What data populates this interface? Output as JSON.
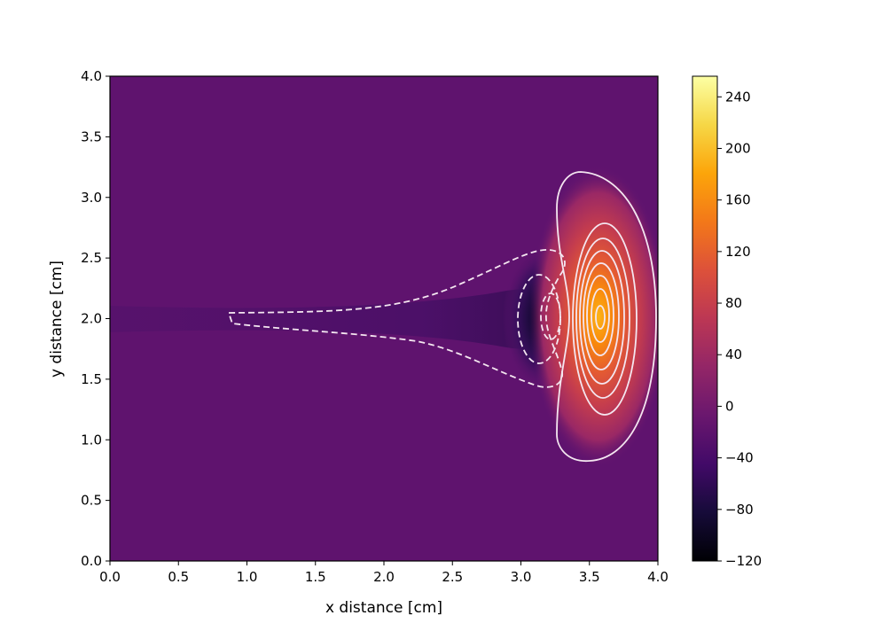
{
  "chart_data": {
    "type": "heatmap",
    "title": "",
    "xlabel": "x distance [cm]",
    "ylabel": "y distance [cm]",
    "xlim": [
      0.0,
      4.0
    ],
    "ylim": [
      0.0,
      4.0
    ],
    "x_ticks": [
      "0.0",
      "0.5",
      "1.0",
      "1.5",
      "2.0",
      "2.5",
      "3.0",
      "3.5",
      "4.0"
    ],
    "y_ticks": [
      "0.0",
      "0.5",
      "1.0",
      "1.5",
      "2.0",
      "2.5",
      "3.0",
      "3.5",
      "4.0"
    ],
    "colormap": "inferno",
    "background_value": 0,
    "colorbar": {
      "min": -120,
      "max": 256,
      "ticks": [
        "−120",
        "−80",
        "−40",
        "0",
        "40",
        "80",
        "120",
        "160",
        "200",
        "240"
      ]
    },
    "features": [
      {
        "kind": "maximum",
        "x": 3.58,
        "y": 1.97,
        "value": 256
      },
      {
        "kind": "minimum",
        "x": 3.2,
        "y": 2.0,
        "value": -120
      }
    ],
    "contour_style": {
      "positive": "solid white",
      "negative": "dashed white"
    },
    "grid": false
  }
}
